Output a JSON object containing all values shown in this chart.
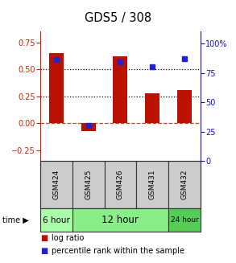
{
  "title": "GDS5 / 308",
  "categories": [
    "GSM424",
    "GSM425",
    "GSM426",
    "GSM431",
    "GSM432"
  ],
  "log_ratio": [
    0.65,
    -0.07,
    0.62,
    0.28,
    0.31
  ],
  "percentile_rank_pct": [
    86,
    30,
    84,
    80,
    87
  ],
  "bar_color": "#bb1100",
  "dot_color": "#2222cc",
  "ylim_left": [
    -0.35,
    0.85
  ],
  "ylim_right": [
    0,
    110
  ],
  "yticks_left": [
    -0.25,
    0,
    0.25,
    0.5,
    0.75
  ],
  "yticks_right": [
    0,
    25,
    50,
    75,
    100
  ],
  "hlines": [
    0.5,
    0.25
  ],
  "zero_line_color": "#cc4422",
  "background_color": "#ffffff",
  "left_tick_color": "#cc2200",
  "right_tick_color": "#1111bb"
}
